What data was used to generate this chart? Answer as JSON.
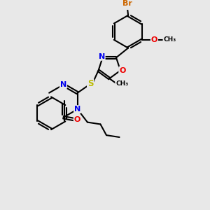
{
  "bg_color": "#e8e8e8",
  "bond_color": "#000000",
  "bond_width": 1.5,
  "atom_colors": {
    "N": "#0000ee",
    "O": "#ee0000",
    "S": "#bbbb00",
    "Br": "#cc6600",
    "C": "#000000"
  },
  "font_size": 8.0
}
